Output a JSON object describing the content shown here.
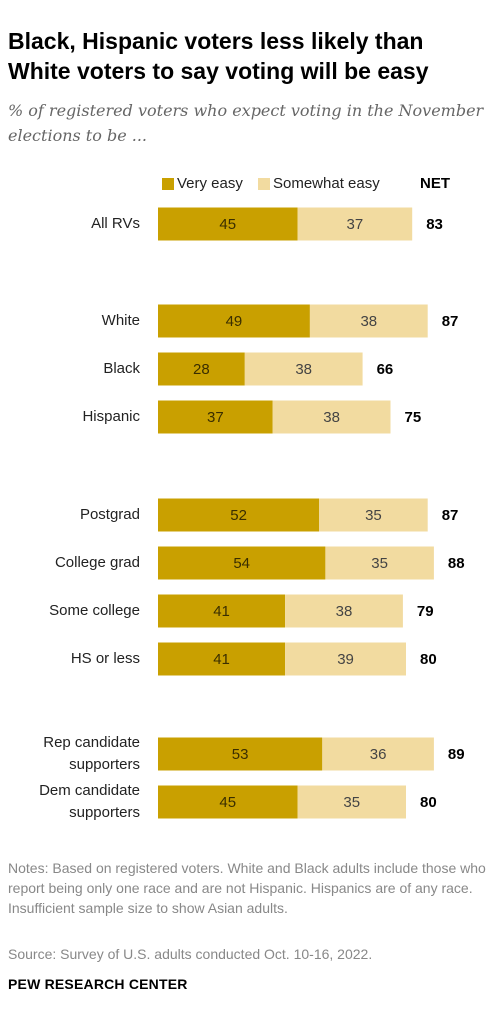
{
  "title": "Black, Hispanic voters less likely than White voters to say voting will be easy",
  "subtitle": "% of registered voters who expect voting in the November elections to be ...",
  "notes": "Notes: Based on registered voters. White and Black adults include those who report being only one race and are not Hispanic. Hispanics are of any race. Insufficient sample size to show Asian adults.",
  "source": "Source: Survey of U.S. adults conducted Oct. 10-16, 2022.",
  "logo": "PEW RESEARCH CENTER",
  "colors": {
    "very_easy": "#c9a000",
    "somewhat_easy": "#f2dba0"
  },
  "chart_data": {
    "type": "bar",
    "orientation": "horizontal",
    "stacked": true,
    "net_label": "NET",
    "legend_placement": "top",
    "categories": [
      "All RVs",
      "White",
      "Black",
      "Hispanic",
      "Postgrad",
      "College grad",
      "Some college",
      "HS or less",
      "Rep candidate supporters",
      "Dem candidate supporters"
    ],
    "category_lines": [
      [
        "All RVs"
      ],
      [
        "White"
      ],
      [
        "Black"
      ],
      [
        "Hispanic"
      ],
      [
        "Postgrad"
      ],
      [
        "College grad"
      ],
      [
        "Some college"
      ],
      [
        "HS or less"
      ],
      [
        "Rep candidate",
        "supporters"
      ],
      [
        "Dem candidate",
        "supporters"
      ]
    ],
    "series": [
      {
        "name": "Very easy",
        "values": [
          45,
          49,
          28,
          37,
          52,
          54,
          41,
          41,
          53,
          45
        ]
      },
      {
        "name": "Somewhat easy",
        "values": [
          37,
          38,
          38,
          38,
          35,
          35,
          38,
          39,
          36,
          35
        ]
      }
    ],
    "net": [
      83,
      87,
      66,
      75,
      87,
      88,
      79,
      80,
      89,
      80
    ],
    "groups": [
      [
        0
      ],
      [
        1,
        2,
        3
      ],
      [
        4,
        5,
        6,
        7
      ],
      [
        8,
        9
      ]
    ],
    "grid": false
  }
}
